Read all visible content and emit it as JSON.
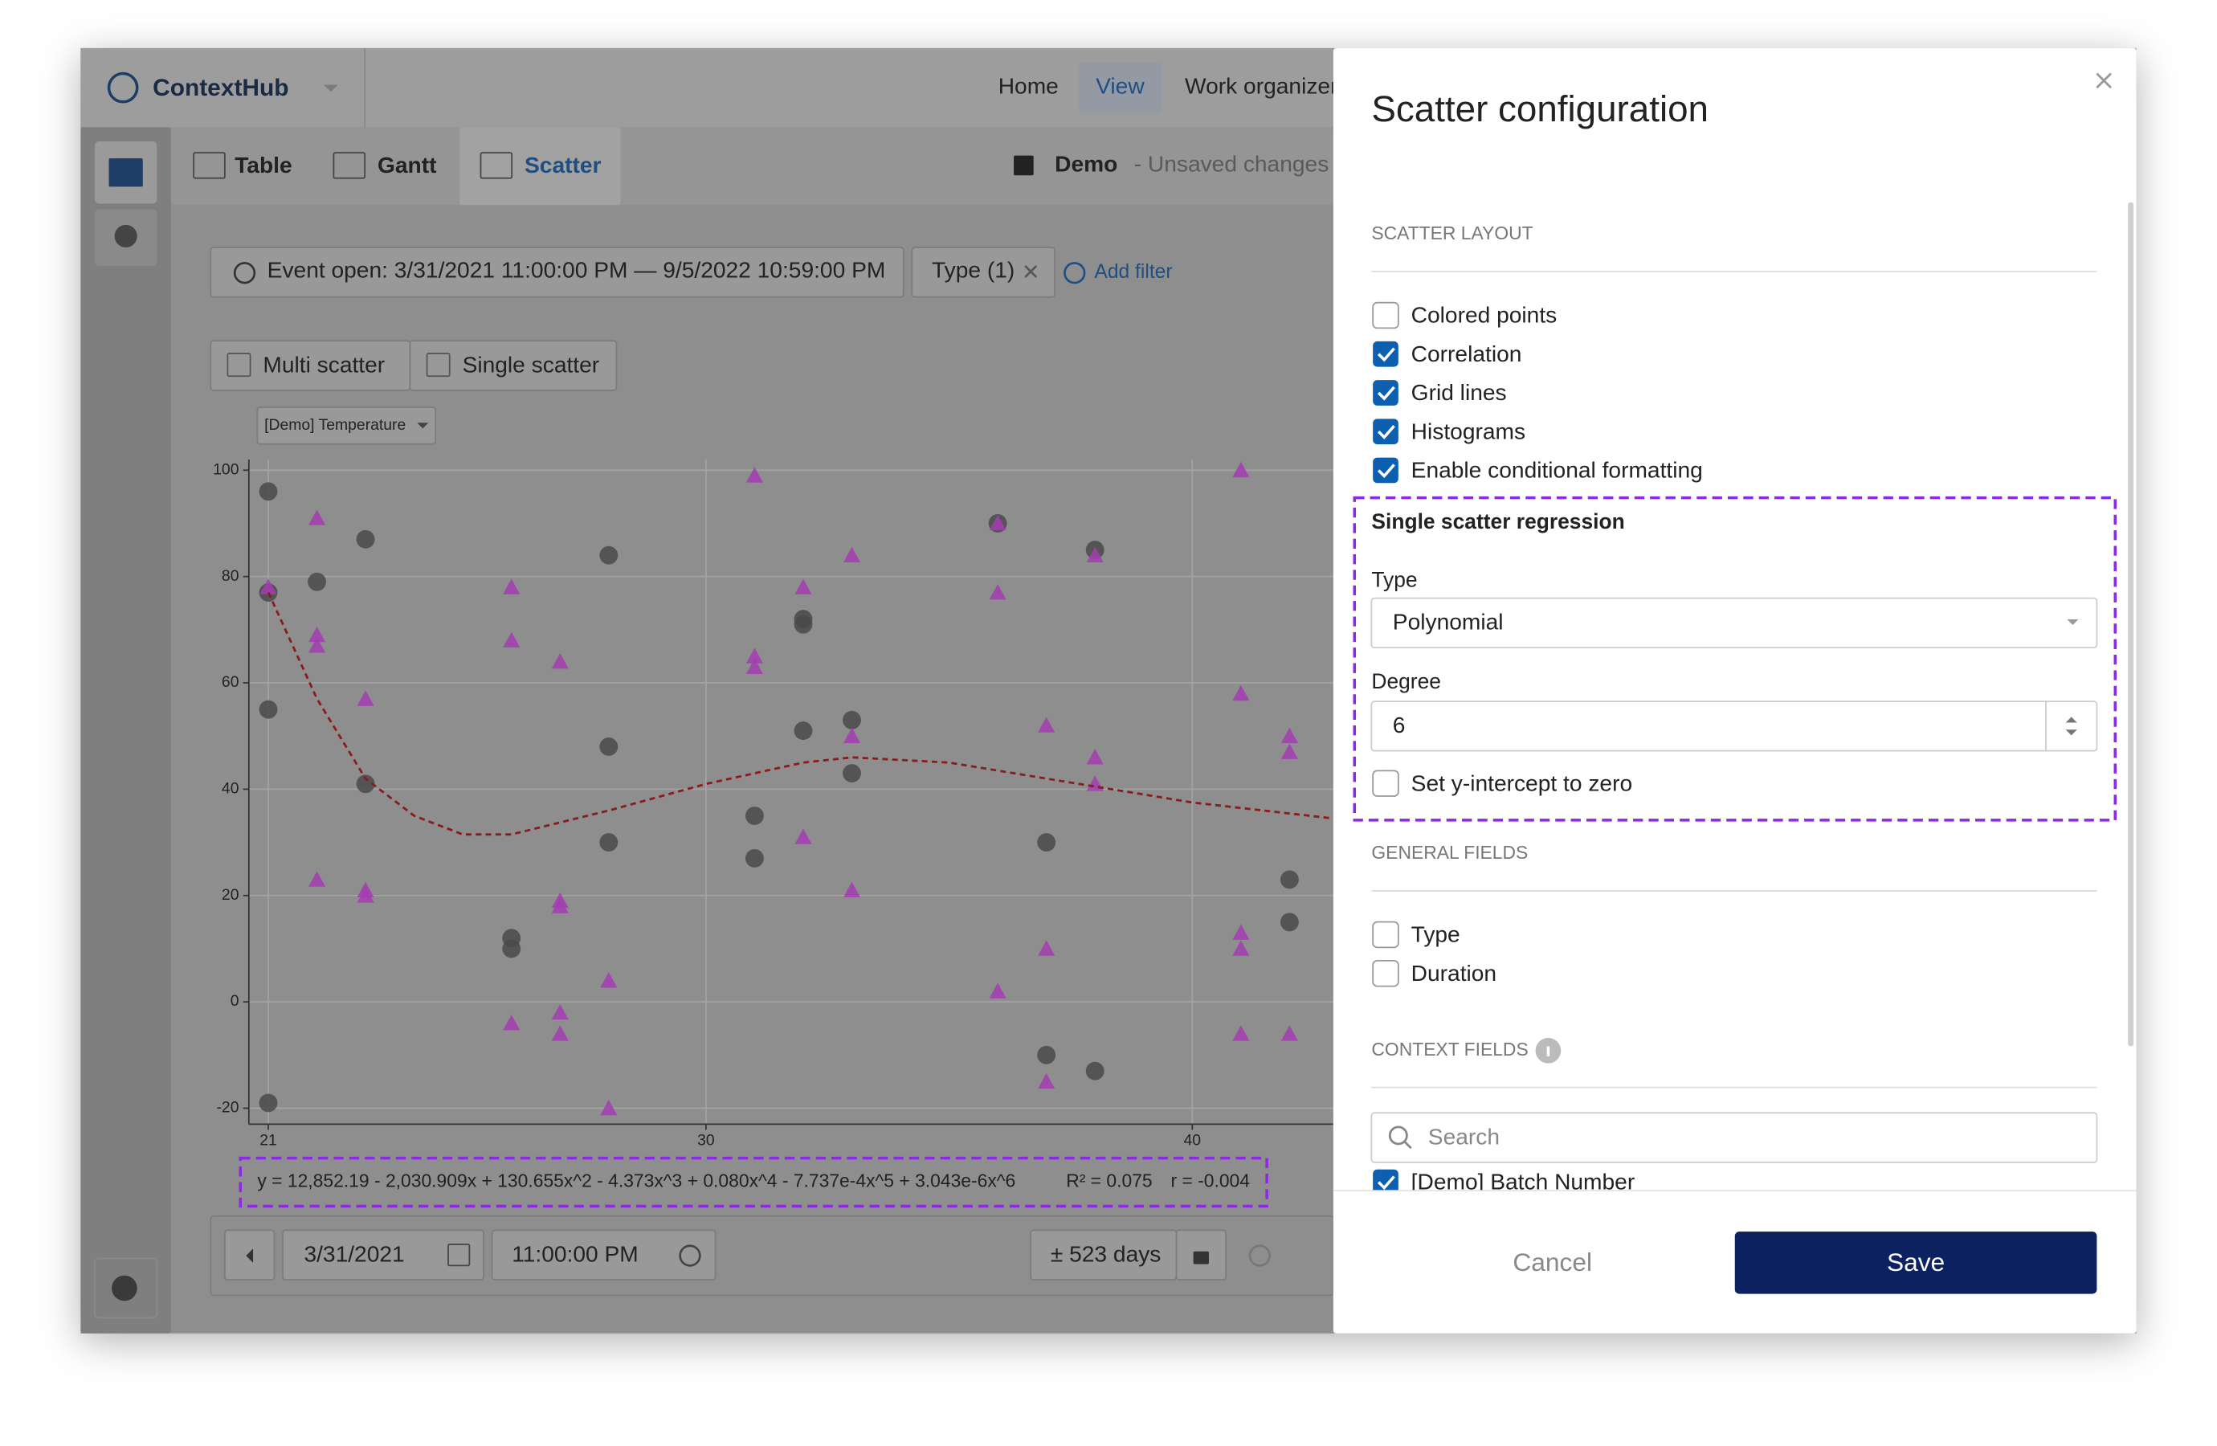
{
  "app": {
    "logo": "ContextHub",
    "nav": [
      "Home",
      "View",
      "Work organizer"
    ],
    "tabs": [
      "Table",
      "Gantt",
      "Scatter"
    ],
    "view_name": "Demo",
    "view_status": "- Unsaved changes",
    "filter": "Event open: 3/31/2021 11:00:00 PM — 9/5/2022 10:59:00 PM",
    "type_filter": "Type (1)",
    "add_filter": "Add filter",
    "scatter_modes": [
      "Multi scatter",
      "Single scatter"
    ],
    "variable": "[Demo] Temperature",
    "date": "3/31/2021",
    "time": "11:00:00 PM",
    "range": "± 523 days"
  },
  "chart_data": {
    "type": "scatter",
    "xlim": [
      20.6,
      42.9
    ],
    "ylim": [
      -23,
      102
    ],
    "xticks": [
      21,
      30,
      40
    ],
    "yticks": [
      -20,
      0,
      20,
      40,
      60,
      80,
      100
    ],
    "grid": true,
    "series": [
      {
        "marker": "circle",
        "color": "#4a4a4a",
        "x": [
          21,
          21,
          22,
          23,
          21,
          23,
          26,
          26,
          28,
          28,
          28,
          31,
          31,
          32,
          32,
          32,
          33,
          33,
          36,
          37,
          37,
          38,
          38,
          42,
          42,
          21
        ],
        "values": [
          96,
          77,
          79,
          87,
          55,
          41,
          12,
          10,
          84,
          48,
          30,
          35,
          27,
          72,
          71,
          51,
          53,
          43,
          90,
          30,
          -10,
          85,
          -13,
          23,
          15,
          -19
        ]
      },
      {
        "marker": "triangle",
        "color": "#a43cb2",
        "x": [
          21,
          22,
          22,
          22,
          22,
          23,
          23,
          23,
          26,
          26,
          26,
          27,
          27,
          27,
          27,
          27,
          28,
          28,
          31,
          31,
          31,
          32,
          32,
          33,
          33,
          33,
          36,
          36,
          36,
          37,
          37,
          37,
          38,
          38,
          38,
          41,
          41,
          41,
          41,
          41,
          42,
          42,
          42
        ],
        "values": [
          78,
          91,
          69,
          67,
          23,
          57,
          21,
          20,
          78,
          68,
          -4,
          64,
          19,
          18,
          -2,
          -6,
          4,
          -20,
          99,
          65,
          63,
          78,
          31,
          84,
          50,
          21,
          90,
          77,
          2,
          52,
          10,
          -15,
          46,
          41,
          84,
          100,
          58,
          13,
          10,
          -6,
          50,
          47,
          -6
        ]
      },
      {
        "marker": "dashed-line",
        "color": "#8b1c1c",
        "x": [
          21,
          22,
          23,
          24,
          25,
          26,
          28,
          30,
          32,
          33,
          35,
          37,
          40,
          42.9
        ],
        "values": [
          77,
          57,
          42,
          35,
          31.5,
          31.5,
          36,
          41,
          45,
          46,
          45,
          42,
          37.5,
          34.5
        ]
      }
    ],
    "equation": "y = 12,852.19 - 2,030.909x + 130.655x^2 - 4.373x^3 + 0.080x^4 - 7.737e-4x^5 + 3.043e-6x^6",
    "r_squared": "R² = 0.075",
    "r": "r = -0.004"
  },
  "panel": {
    "title": "Scatter configuration",
    "layout_heading": "SCATTER LAYOUT",
    "layout_options": [
      {
        "label": "Colored points",
        "checked": false
      },
      {
        "label": "Correlation",
        "checked": true
      },
      {
        "label": "Grid lines",
        "checked": true
      },
      {
        "label": "Histograms",
        "checked": true
      },
      {
        "label": "Enable conditional formatting",
        "checked": true
      }
    ],
    "regression": {
      "heading": "Single scatter regression",
      "type_label": "Type",
      "type_value": "Polynomial",
      "degree_label": "Degree",
      "degree_value": 6,
      "intercept": {
        "label": "Set y-intercept to zero",
        "checked": false
      }
    },
    "general_heading": "GENERAL FIELDS",
    "general_options": [
      {
        "label": "Type",
        "checked": false
      },
      {
        "label": "Duration",
        "checked": false
      }
    ],
    "context_heading": "CONTEXT FIELDS",
    "search_placeholder": "Search",
    "context_options": [
      {
        "label": "[Demo] Batch Number",
        "checked": true
      }
    ],
    "cancel": "Cancel",
    "save": "Save"
  }
}
